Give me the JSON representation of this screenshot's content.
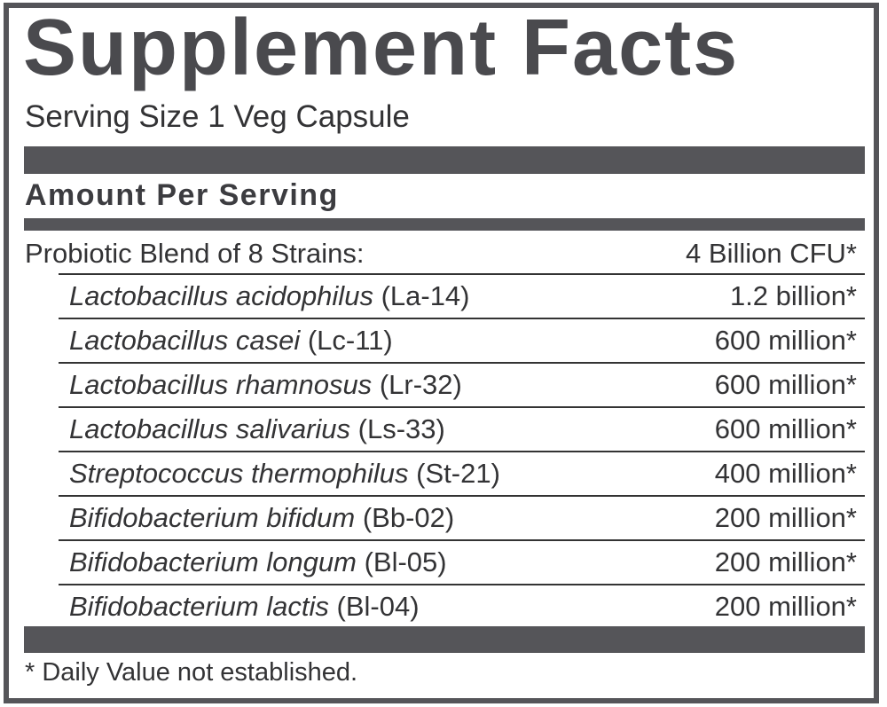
{
  "title": "Supplement Facts",
  "serving_size": "Serving Size 1 Veg Capsule",
  "amount_per_serving": "Amount Per Serving",
  "blend": {
    "label": "Probiotic Blend of 8 Strains:",
    "amount": "4 Billion CFU*"
  },
  "strains": [
    {
      "species": "Lactobacillus acidophilus",
      "code": "(La-14)",
      "amount": "1.2 billion*"
    },
    {
      "species": "Lactobacillus casei",
      "code": "(Lc-11)",
      "amount": "600 million*"
    },
    {
      "species": "Lactobacillus rhamnosus",
      "code": "(Lr-32)",
      "amount": "600 million*"
    },
    {
      "species": "Lactobacillus salivarius",
      "code": "(Ls-33)",
      "amount": "600 million*"
    },
    {
      "species": "Streptococcus thermophilus",
      "code": "(St-21)",
      "amount": "400 million*"
    },
    {
      "species": "Bifidobacterium bifidum",
      "code": "(Bb-02)",
      "amount": "200 million*"
    },
    {
      "species": "Bifidobacterium longum",
      "code": "(Bl-05)",
      "amount": "200 million*"
    },
    {
      "species": "Bifidobacterium lactis",
      "code": "(Bl-04)",
      "amount": "200 million*"
    }
  ],
  "footnote": "* Daily Value not established.",
  "colors": {
    "bar": "#555559",
    "text": "#333335"
  }
}
